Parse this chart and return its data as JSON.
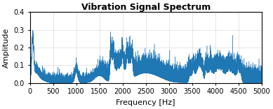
{
  "title": "Vibration Signal Spectrum",
  "xlabel": "Frequency [Hz]",
  "ylabel": "Amplitude",
  "xlim": [
    0,
    5000
  ],
  "ylim": [
    0,
    0.4
  ],
  "yticks": [
    0,
    0.1,
    0.2,
    0.3,
    0.4
  ],
  "xticks": [
    0,
    500,
    1000,
    1500,
    2000,
    2500,
    3000,
    3500,
    4000,
    4500,
    5000
  ],
  "line_color": "#1f77b4",
  "background_color": "#ffffff",
  "seed": 7,
  "title_fontsize": 9,
  "label_fontsize": 8,
  "tick_fontsize": 7
}
